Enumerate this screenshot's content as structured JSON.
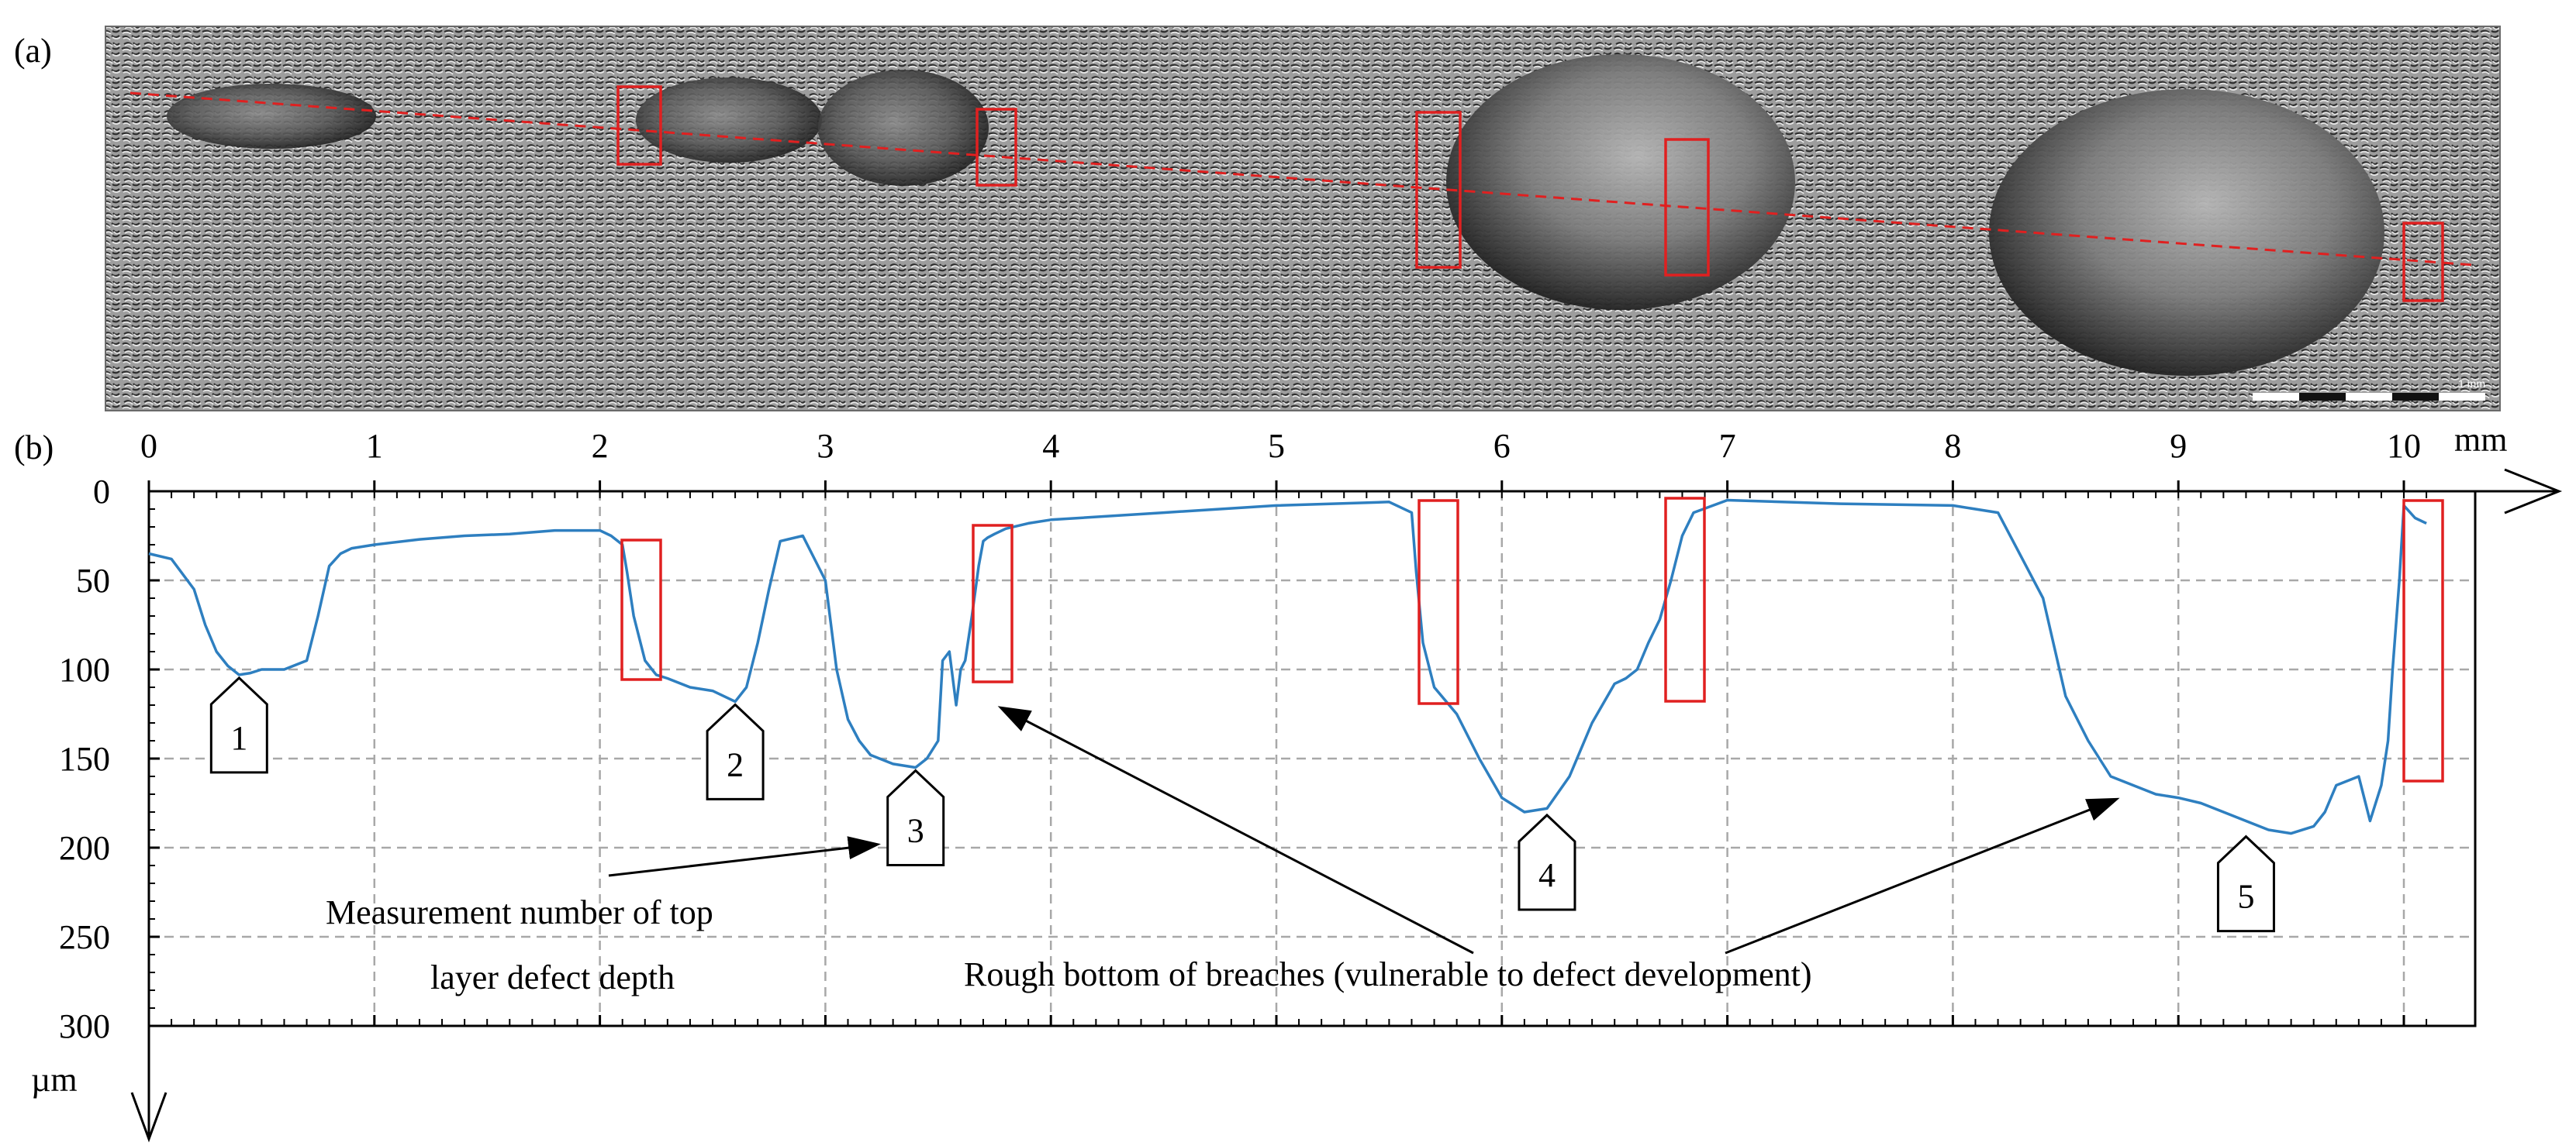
{
  "figure": {
    "panel_a_label": "(a)",
    "panel_b_label": "(b)"
  },
  "annotations": {
    "measurement_label_line1": "Measurement number of top",
    "measurement_label_line2": "layer defect depth",
    "rough_bottom_label": "Rough bottom of breaches (vulnerable to defect development)",
    "markers": [
      "1",
      "2",
      "3",
      "4",
      "5"
    ],
    "scale_bar_text": "1 mm"
  },
  "colors": {
    "profile": "#2e7fc0",
    "highlight_box": "#e02020",
    "trace_line": "#e02020",
    "grid": "#a8a8a8",
    "axis": "#000000"
  },
  "chart_data": {
    "type": "line",
    "title": "",
    "x_unit": "mm",
    "y_unit": "µm",
    "xlim": [
      0,
      10
    ],
    "ylim": [
      0,
      300
    ],
    "y_inverted": true,
    "x_ticks": [
      "0",
      "1",
      "2",
      "3",
      "4",
      "5",
      "6",
      "7",
      "8",
      "9",
      "10"
    ],
    "y_ticks": [
      "0",
      "50",
      "100",
      "150",
      "200",
      "250",
      "300"
    ],
    "grid": true,
    "series": [
      {
        "x": [
          0.0,
          0.1,
          0.2,
          0.25,
          0.3,
          0.35,
          0.4,
          0.45,
          0.5,
          0.6,
          0.7,
          0.75,
          0.8,
          0.85,
          0.9,
          1.0,
          1.2,
          1.4,
          1.6,
          1.8,
          2.0,
          2.05,
          2.1,
          2.12,
          2.15,
          2.2,
          2.25,
          2.3,
          2.4,
          2.5,
          2.6,
          2.65,
          2.7,
          2.75,
          2.8,
          2.9,
          3.0,
          3.05,
          3.1,
          3.15,
          3.2,
          3.3,
          3.4,
          3.45,
          3.5,
          3.52,
          3.55,
          3.58,
          3.6,
          3.62,
          3.65,
          3.68,
          3.7,
          3.72,
          3.75,
          3.8,
          3.9,
          4.0,
          4.5,
          5.0,
          5.5,
          5.6,
          5.62,
          5.65,
          5.7,
          5.8,
          5.9,
          6.0,
          6.1,
          6.2,
          6.3,
          6.4,
          6.5,
          6.55,
          6.6,
          6.65,
          6.7,
          6.75,
          6.8,
          6.85,
          7.0,
          7.5,
          8.0,
          8.2,
          8.4,
          8.5,
          8.6,
          8.7,
          8.8,
          8.9,
          9.0,
          9.1,
          9.2,
          9.3,
          9.4,
          9.5,
          9.6,
          9.65,
          9.7,
          9.8,
          9.85,
          9.9,
          9.93,
          9.95,
          9.98,
          10.0,
          10.05,
          10.1
        ],
        "y": [
          35,
          38,
          55,
          75,
          90,
          98,
          103,
          102,
          100,
          100,
          95,
          70,
          42,
          35,
          32,
          30,
          27,
          25,
          24,
          22,
          22,
          25,
          30,
          45,
          70,
          95,
          103,
          105,
          110,
          112,
          118,
          110,
          85,
          55,
          28,
          25,
          50,
          100,
          128,
          140,
          148,
          153,
          155,
          150,
          140,
          95,
          90,
          120,
          100,
          95,
          70,
          42,
          28,
          26,
          24,
          21,
          18,
          16,
          12,
          8,
          6,
          12,
          45,
          85,
          110,
          125,
          150,
          172,
          180,
          178,
          160,
          130,
          108,
          105,
          100,
          85,
          72,
          50,
          25,
          12,
          5,
          7,
          8,
          12,
          60,
          115,
          140,
          160,
          165,
          170,
          172,
          175,
          180,
          185,
          190,
          192,
          188,
          180,
          165,
          160,
          185,
          165,
          140,
          100,
          50,
          8,
          15,
          18
        ]
      }
    ]
  }
}
